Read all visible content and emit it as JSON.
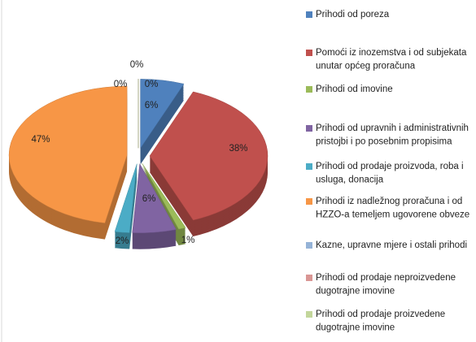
{
  "chart_data": {
    "type": "pie",
    "categories": [
      "Prihodi od poreza",
      "Pomoći iz inozemstva i od subjekata unutar općeg proračuna",
      "Prihodi od imovine",
      "Prihodi od upravnih i administrativnih pristojbi i po posebnim propisima",
      "Prihodi od prodaje proizvoda, roba i usluga, donacija",
      "Prihodi iz nadležnog proračuna i od HZZO-a temeljem ugovorene obveze",
      "Kazne, upravne mjere i ostali prihodi",
      "Prihodi od prodaje neproizvedene dugotrajne imovine",
      "Prihodi od prodaje proizvedene dugotrajne imovine"
    ],
    "values": [
      6,
      38,
      1,
      6,
      2,
      47,
      0,
      0,
      0
    ],
    "value_labels": [
      "6%",
      "38%",
      "1%",
      "6%",
      "2%",
      "47%",
      "0%",
      "0%",
      "0%"
    ],
    "colors": [
      "#4f81bd",
      "#c0504d",
      "#9bbb59",
      "#8064a2",
      "#4bacc6",
      "#f79646",
      "#95b3d7",
      "#d99694",
      "#c3d69b"
    ],
    "legend": "right"
  }
}
